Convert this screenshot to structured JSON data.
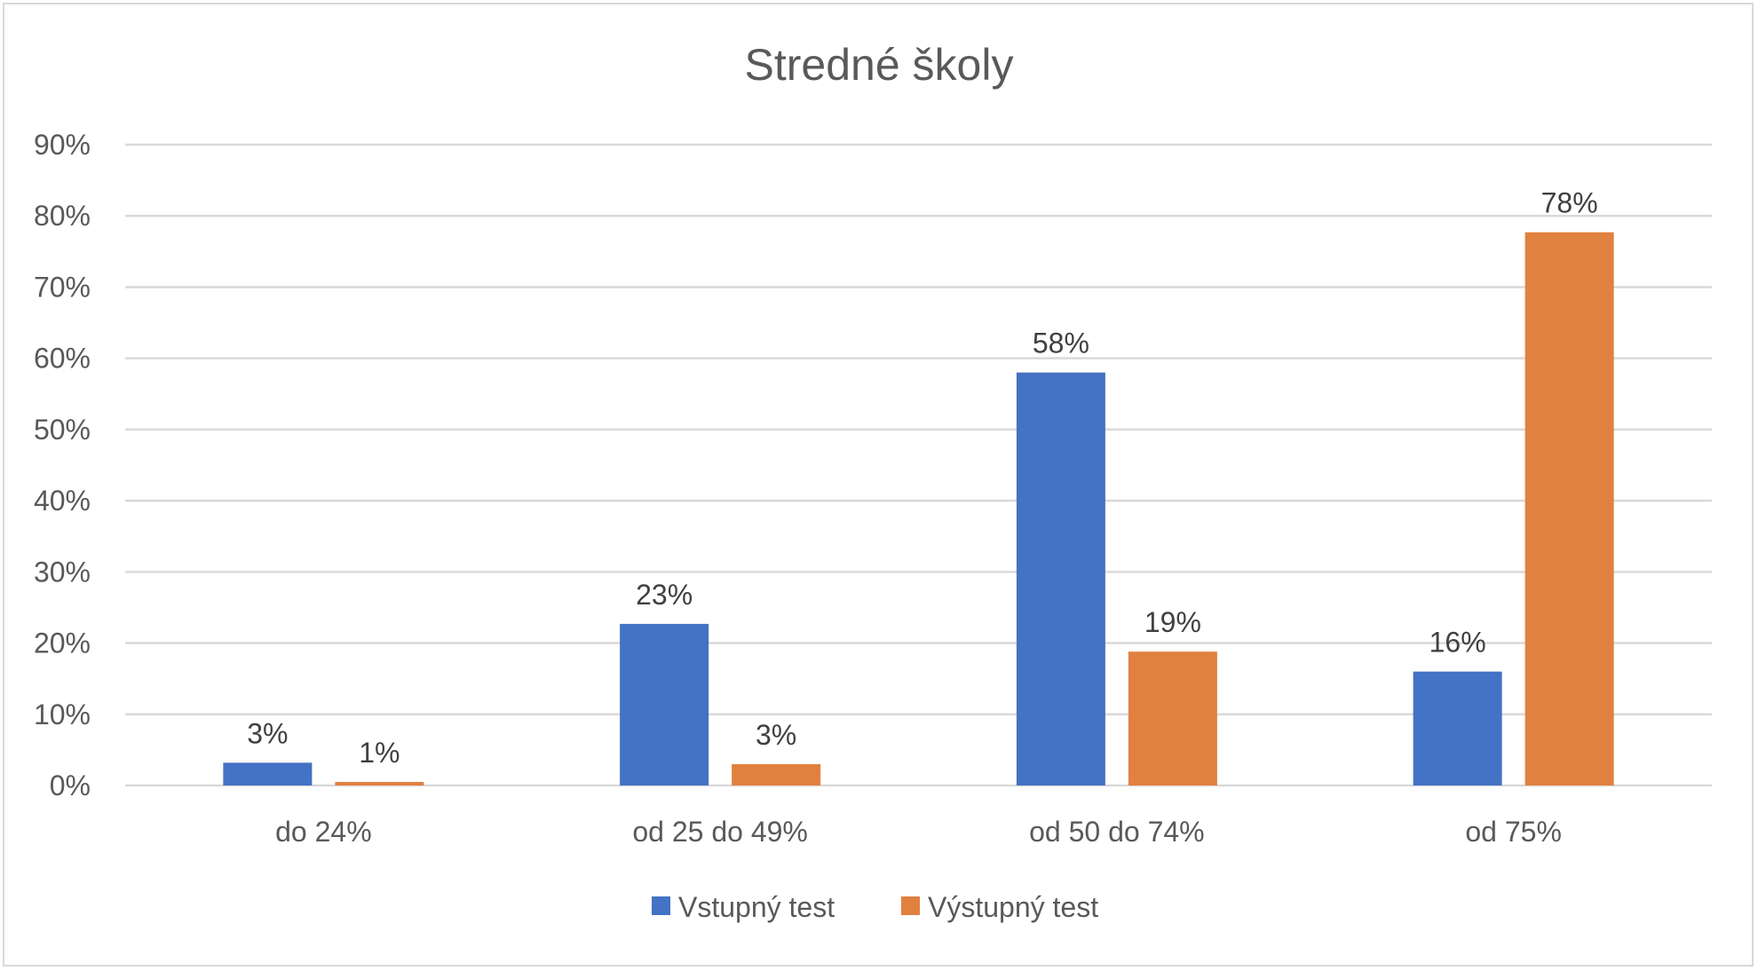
{
  "chart_data": {
    "type": "bar",
    "title": "Stredné školy",
    "categories": [
      "do 24%",
      "od 25 do 49%",
      "od 50 do 74%",
      "od 75%"
    ],
    "series": [
      {
        "name": "Vstupný test",
        "color": "#4472C4",
        "values": [
          3.2,
          22.7,
          58,
          16
        ],
        "labels": [
          "3%",
          "23%",
          "58%",
          "16%"
        ]
      },
      {
        "name": "Výstupný test",
        "color": "#E0813F",
        "values": [
          0.5,
          3,
          18.8,
          77.7
        ],
        "labels": [
          "1%",
          "3%",
          "19%",
          "78%"
        ]
      }
    ],
    "ylim": [
      0,
      90
    ],
    "yticks": [
      "0%",
      "10%",
      "20%",
      "30%",
      "40%",
      "50%",
      "60%",
      "70%",
      "80%",
      "90%"
    ],
    "grid": true,
    "legend": "bottom"
  }
}
